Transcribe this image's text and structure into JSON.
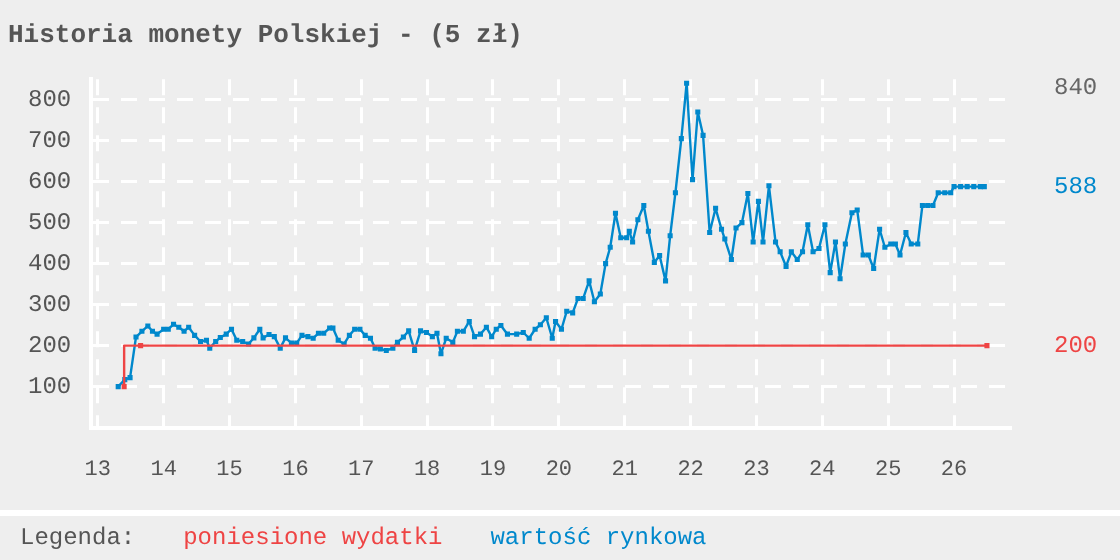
{
  "chart_data": {
    "type": "line",
    "title": "Historia monety Polskiej - (5 zł)",
    "legend_title": "Legenda:",
    "legend": "bottom",
    "grid": true,
    "marker": "square",
    "xlim": [
      12.9,
      26.85
    ],
    "xticks": [
      13,
      14,
      15,
      16,
      17,
      18,
      19,
      20,
      21,
      22,
      23,
      24,
      25,
      26
    ],
    "ylim": [
      0,
      850
    ],
    "yticks": [
      100,
      200,
      300,
      400,
      500,
      600,
      700,
      800
    ],
    "annotations": [
      "840",
      {
        "text": "588",
        "x": 26.46,
        "y": 588
      },
      {
        "text": "200",
        "x": 26.5,
        "y": 200
      }
    ],
    "series": [
      {
        "name": "poniesione wydatki",
        "color": "#ee4444",
        "type": "step",
        "x": [
          13.4,
          13.65,
          26.5
        ],
        "values": [
          100,
          200,
          200
        ]
      },
      {
        "name": "wartość rynkowa",
        "color": "#0088cc",
        "type": "line",
        "x": [
          13.31,
          13.41,
          13.49,
          13.58,
          13.67,
          13.76,
          13.83,
          13.9,
          14.0,
          14.07,
          14.15,
          14.23,
          14.31,
          14.38,
          14.47,
          14.56,
          14.65,
          14.7,
          14.79,
          14.86,
          14.95,
          15.03,
          15.11,
          15.2,
          15.29,
          15.37,
          15.46,
          15.51,
          15.6,
          15.68,
          15.77,
          15.85,
          15.94,
          16.02,
          16.1,
          16.19,
          16.27,
          16.35,
          16.43,
          16.52,
          16.57,
          16.65,
          16.74,
          16.82,
          16.9,
          16.98,
          17.06,
          17.14,
          17.21,
          17.29,
          17.38,
          17.48,
          17.55,
          17.64,
          17.72,
          17.81,
          17.9,
          17.99,
          18.08,
          18.15,
          18.21,
          18.29,
          18.39,
          18.46,
          18.55,
          18.64,
          18.72,
          18.81,
          18.9,
          18.98,
          19.05,
          19.12,
          19.22,
          19.36,
          19.46,
          19.55,
          19.64,
          19.72,
          19.81,
          19.9,
          19.95,
          20.04,
          20.12,
          20.21,
          20.29,
          20.37,
          20.46,
          20.54,
          20.63,
          20.71,
          20.78,
          20.86,
          20.94,
          21.03,
          21.07,
          21.12,
          21.2,
          21.29,
          21.36,
          21.45,
          21.53,
          21.62,
          21.69,
          21.77,
          21.86,
          21.94,
          22.03,
          22.11,
          22.19,
          22.29,
          22.38,
          22.47,
          22.52,
          22.62,
          22.69,
          22.78,
          22.87,
          22.95,
          23.03,
          23.1,
          23.19,
          23.29,
          23.36,
          23.45,
          23.53,
          23.62,
          23.7,
          23.78,
          23.86,
          23.95,
          24.04,
          24.12,
          24.2,
          24.27,
          24.35,
          24.45,
          24.53,
          24.62,
          24.7,
          24.78,
          24.87,
          24.95,
          25.04,
          25.11,
          25.18,
          25.27,
          25.35,
          25.45,
          25.52,
          25.6,
          25.68,
          25.76,
          25.86,
          25.95,
          26.0,
          26.1,
          26.2,
          26.3,
          26.4,
          26.46
        ],
        "values": [
          100,
          117,
          122,
          221,
          235,
          248,
          235,
          228,
          240,
          240,
          252,
          245,
          235,
          245,
          225,
          210,
          213,
          194,
          210,
          220,
          228,
          240,
          213,
          210,
          204,
          219,
          240,
          219,
          227,
          222,
          194,
          219,
          206,
          206,
          225,
          222,
          218,
          230,
          230,
          243,
          243,
          213,
          204,
          225,
          240,
          240,
          225,
          218,
          194,
          192,
          188,
          194,
          208,
          221,
          236,
          188,
          236,
          232,
          222,
          230,
          180,
          218,
          208,
          235,
          235,
          259,
          222,
          228,
          245,
          222,
          240,
          249,
          228,
          228,
          232,
          218,
          240,
          251,
          268,
          218,
          259,
          240,
          284,
          280,
          315,
          315,
          358,
          307,
          326,
          400,
          440,
          523,
          463,
          463,
          479,
          453,
          507,
          542,
          479,
          403,
          420,
          358,
          468,
          573,
          705,
          840,
          605,
          770,
          713,
          476,
          535,
          484,
          460,
          410,
          487,
          500,
          571,
          453,
          552,
          453,
          590,
          453,
          429,
          393,
          429,
          410,
          429,
          495,
          429,
          437,
          495,
          378,
          453,
          363,
          448,
          524,
          531,
          421,
          421,
          388,
          484,
          440,
          448,
          448,
          421,
          476,
          448,
          448,
          542,
          542,
          542,
          573,
          573,
          573,
          588,
          588,
          588,
          588,
          588,
          588
        ]
      }
    ]
  }
}
